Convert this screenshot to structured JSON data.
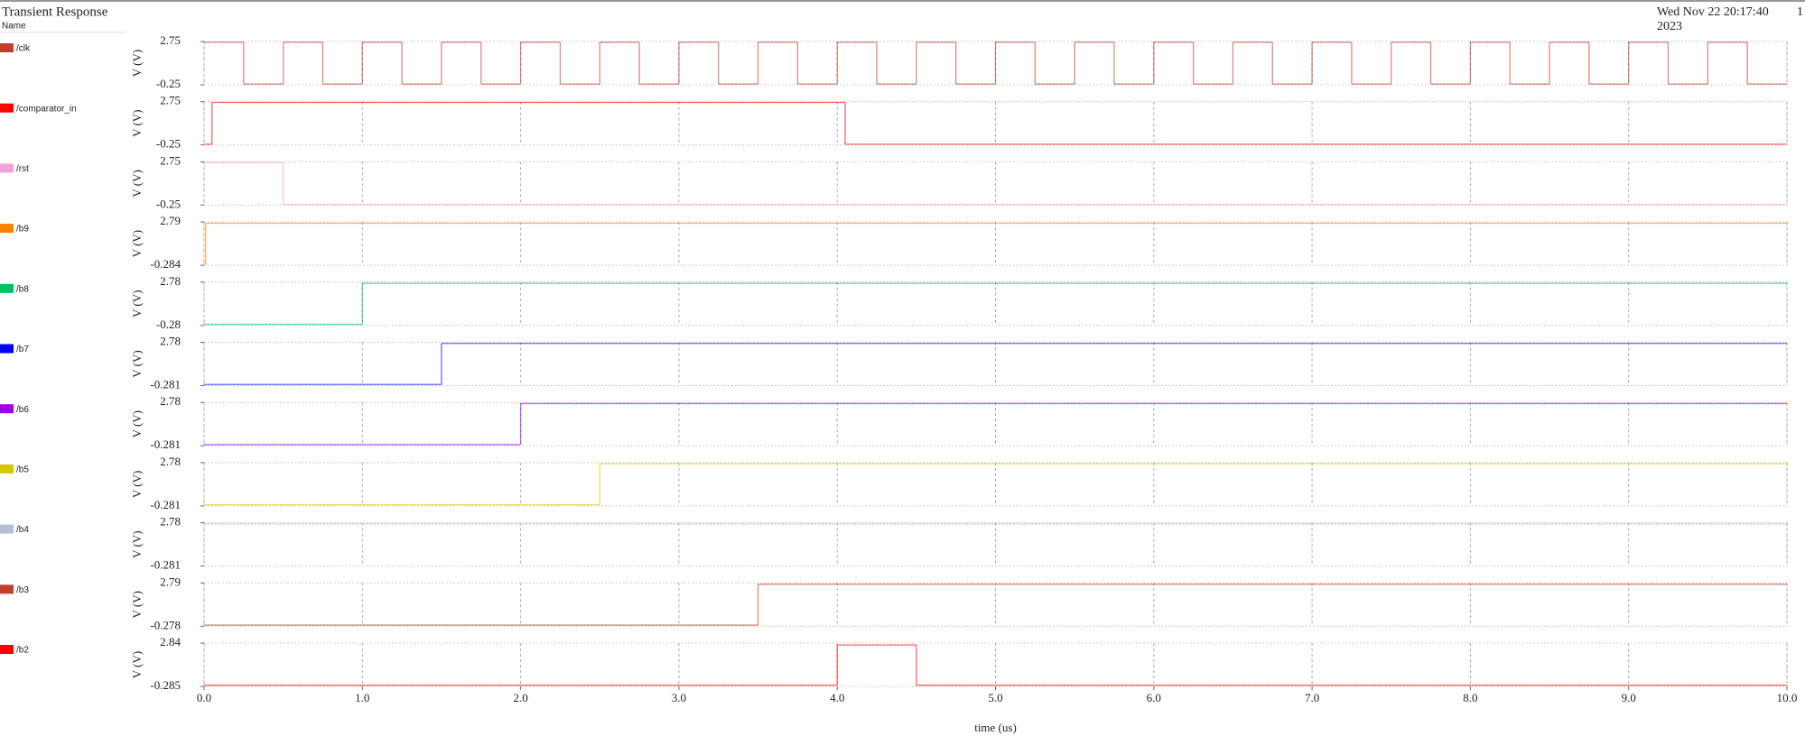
{
  "header": {
    "title": "Transient Response",
    "subtitle": "Name",
    "date": "Wed Nov 22 20:17:40",
    "year": "2023",
    "page": "1"
  },
  "chart_data": [
    {
      "type": "line",
      "drawstyle": "steps-post",
      "ylabel": "V (V)",
      "xlim": [
        0,
        10
      ],
      "ylim": [
        -0.25,
        2.75
      ],
      "yticks": [
        -0.25,
        2.75
      ],
      "grid": true,
      "x": [
        0,
        0.25,
        0.5,
        0.75,
        1,
        1.25,
        1.5,
        1.75,
        2,
        2.25,
        2.5,
        2.75,
        3,
        3.25,
        3.5,
        3.75,
        4,
        4.25,
        4.5,
        4.75,
        5,
        5.25,
        5.5,
        5.75,
        6,
        6.25,
        6.5,
        6.75,
        7,
        7.25,
        7.5,
        7.75,
        8,
        8.25,
        8.5,
        8.75,
        9,
        9.25,
        9.5,
        9.75
      ],
      "series": [
        {
          "name": "/clk",
          "color": "#c0402c",
          "values": [
            2.7,
            -0.2,
            2.7,
            -0.2,
            2.7,
            -0.2,
            2.7,
            -0.2,
            2.7,
            -0.2,
            2.7,
            -0.2,
            2.7,
            -0.2,
            2.7,
            -0.2,
            2.7,
            -0.2,
            2.7,
            -0.2,
            2.7,
            -0.2,
            2.7,
            -0.2,
            2.7,
            -0.2,
            2.7,
            -0.2,
            2.7,
            -0.2,
            2.7,
            -0.2,
            2.7,
            -0.2,
            2.7,
            -0.2,
            2.7,
            -0.2,
            2.7,
            -0.2
          ]
        }
      ]
    },
    {
      "type": "line",
      "drawstyle": "steps-post",
      "ylabel": "V (V)",
      "xlim": [
        0,
        10
      ],
      "ylim": [
        -0.25,
        2.75
      ],
      "yticks": [
        -0.25,
        2.75
      ],
      "grid": true,
      "x": [
        0,
        0.05,
        4.05
      ],
      "series": [
        {
          "name": "/comparator_in",
          "color": "#ff0000",
          "values": [
            -0.2,
            2.7,
            -0.2
          ]
        }
      ]
    },
    {
      "type": "line",
      "drawstyle": "steps-post",
      "ylabel": "V (V)",
      "xlim": [
        0,
        10
      ],
      "ylim": [
        -0.25,
        2.75
      ],
      "yticks": [
        -0.25,
        2.75
      ],
      "grid": true,
      "x": [
        0,
        0.5
      ],
      "series": [
        {
          "name": "/rst",
          "color": "#f2a2dc",
          "values": [
            2.7,
            -0.2
          ]
        }
      ]
    },
    {
      "type": "line",
      "drawstyle": "steps-post",
      "ylabel": "V (V)",
      "xlim": [
        0,
        10
      ],
      "ylim": [
        -0.284,
        2.79
      ],
      "yticks": [
        -0.284,
        2.79
      ],
      "grid": true,
      "x": [
        0,
        0.01
      ],
      "series": [
        {
          "name": "/b9",
          "color": "#ff8000",
          "values": [
            -0.2,
            2.7
          ]
        }
      ]
    },
    {
      "type": "line",
      "drawstyle": "steps-post",
      "ylabel": "V (V)",
      "xlim": [
        0,
        10
      ],
      "ylim": [
        -0.28,
        2.78
      ],
      "yticks": [
        -0.28,
        2.78
      ],
      "grid": true,
      "x": [
        0,
        1.0
      ],
      "series": [
        {
          "name": "/b8",
          "color": "#00c060",
          "values": [
            -0.2,
            2.7
          ]
        }
      ]
    },
    {
      "type": "line",
      "drawstyle": "steps-post",
      "ylabel": "V (V)",
      "xlim": [
        0,
        10
      ],
      "ylim": [
        -0.281,
        2.78
      ],
      "yticks": [
        -0.281,
        2.78
      ],
      "grid": true,
      "x": [
        0,
        1.5
      ],
      "series": [
        {
          "name": "/b7",
          "color": "#0000ff",
          "values": [
            -0.2,
            2.7
          ]
        }
      ]
    },
    {
      "type": "line",
      "drawstyle": "steps-post",
      "ylabel": "V (V)",
      "xlim": [
        0,
        10
      ],
      "ylim": [
        -0.281,
        2.78
      ],
      "yticks": [
        -0.281,
        2.78
      ],
      "grid": true,
      "x": [
        0,
        2.0
      ],
      "series": [
        {
          "name": "/b6",
          "color": "#a000e0",
          "values": [
            -0.2,
            2.7
          ]
        }
      ]
    },
    {
      "type": "line",
      "drawstyle": "steps-post",
      "ylabel": "V (V)",
      "xlim": [
        0,
        10
      ],
      "ylim": [
        -0.281,
        2.78
      ],
      "yticks": [
        -0.281,
        2.78
      ],
      "grid": true,
      "x": [
        0,
        2.5
      ],
      "series": [
        {
          "name": "/b5",
          "color": "#d4c800",
          "values": [
            -0.2,
            2.7
          ]
        }
      ]
    },
    {
      "type": "line",
      "drawstyle": "steps-post",
      "ylabel": "V (V)",
      "xlim": [
        0,
        10
      ],
      "ylim": [
        -0.281,
        2.78
      ],
      "yticks": [
        -0.281,
        2.78
      ],
      "grid": true,
      "x": [
        0
      ],
      "series": [
        {
          "name": "/b4",
          "color": "#b0c0d8",
          "values": [
            2.7
          ]
        }
      ]
    },
    {
      "type": "line",
      "drawstyle": "steps-post",
      "ylabel": "V (V)",
      "xlim": [
        0,
        10
      ],
      "ylim": [
        -0.278,
        2.79
      ],
      "yticks": [
        -0.278,
        2.79
      ],
      "grid": true,
      "x": [
        0,
        3.5
      ],
      "series": [
        {
          "name": "/b3",
          "color": "#c0402c",
          "values": [
            -0.2,
            2.7
          ]
        }
      ]
    },
    {
      "type": "line",
      "drawstyle": "steps-post",
      "ylabel": "V (V)",
      "xlabel": "time (us)",
      "xlim": [
        0,
        10
      ],
      "ylim": [
        -0.285,
        2.84
      ],
      "yticks": [
        -0.285,
        2.84
      ],
      "grid": true,
      "xticks": [
        {
          "value": 0,
          "label": "0.0"
        },
        {
          "value": 1,
          "label": "1.0"
        },
        {
          "value": 2,
          "label": "2.0"
        },
        {
          "value": 3,
          "label": "3.0"
        },
        {
          "value": 4,
          "label": "4.0"
        },
        {
          "value": 5,
          "label": "5.0"
        },
        {
          "value": 6,
          "label": "6.0"
        },
        {
          "value": 7,
          "label": "7.0"
        },
        {
          "value": 8,
          "label": "8.0"
        },
        {
          "value": 9,
          "label": "9.0"
        },
        {
          "value": 10,
          "label": "10.0"
        }
      ],
      "x": [
        0,
        4.0,
        4.5
      ],
      "series": [
        {
          "name": "/b2",
          "color": "#ff0000",
          "values": [
            -0.2,
            2.7,
            -0.2
          ]
        }
      ]
    }
  ]
}
